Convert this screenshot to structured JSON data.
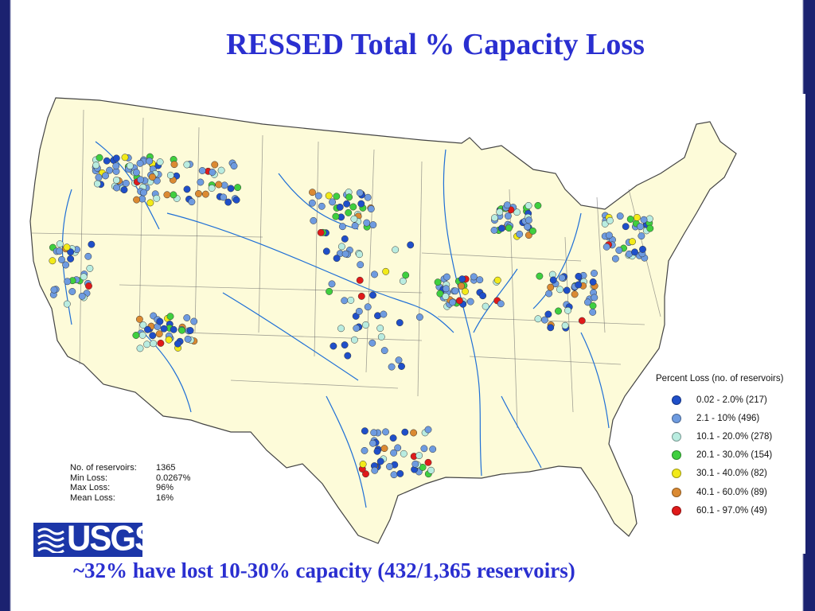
{
  "title": "RESSED Total % Capacity Loss",
  "legend": {
    "title": "Percent Loss (no. of reservoirs)",
    "classes": [
      {
        "label": "0.02 - 2.0% (217)",
        "color": "#1f4fc9"
      },
      {
        "label": "2.1 - 10% (496)",
        "color": "#6e9be0"
      },
      {
        "label": "10.1 - 20.0% (278)",
        "color": "#b9ece0"
      },
      {
        "label": "20.1 - 30.0% (154)",
        "color": "#3fcf3f"
      },
      {
        "label": "30.1 - 40.0% (82)",
        "color": "#f2ea19"
      },
      {
        "label": "40.1 - 60.0% (89)",
        "color": "#db8a32"
      },
      {
        "label": "60.1 - 97.0% (49)",
        "color": "#e01a1a"
      }
    ]
  },
  "stats": [
    {
      "label": "No. of reservoirs:",
      "value": "1365"
    },
    {
      "label": "Min  Loss:",
      "value": "0.0267%"
    },
    {
      "label": "Max Loss:",
      "value": "96%"
    },
    {
      "label": "Mean Loss:",
      "value": "16%"
    }
  ],
  "logo_text": "USGS",
  "caption": "~32% have lost 10-30% capacity (432/1,365 reservoirs)",
  "colors": {
    "land": "#fdfbd9",
    "boundary": "#555555",
    "river": "#1f6fd6",
    "title": "#2a2fd0",
    "frame": "#1b2270",
    "logo": "#1c36a8"
  },
  "icons": {
    "logo": "usgs-wave-icon"
  }
}
